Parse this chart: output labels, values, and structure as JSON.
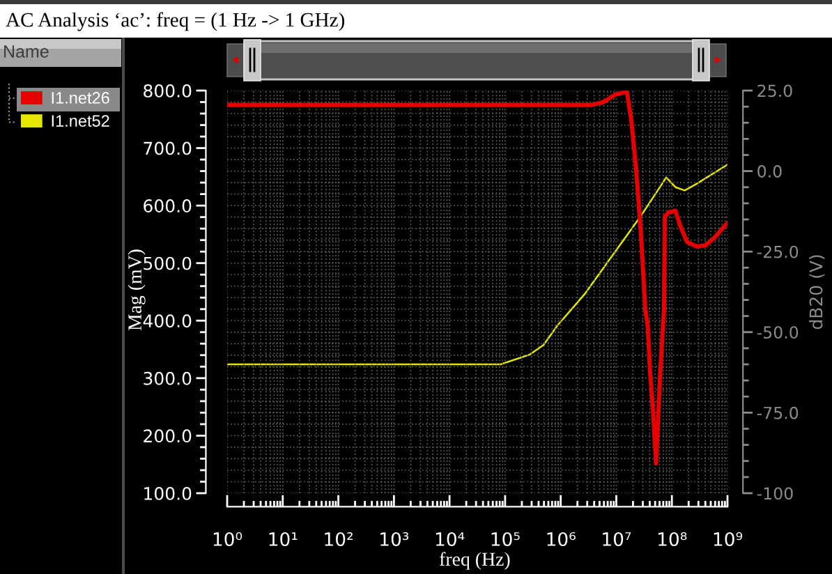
{
  "chart_data": {
    "type": "line",
    "title": "AC Analysis ‘ac’: freq = (1 Hz -> 1 GHz)",
    "xlabel": "freq (Hz)",
    "ylabel": "Mag (mV)",
    "y2label": "dB20 (V)",
    "legend_title": "Name",
    "log": "x",
    "xlim": [
      1,
      1000000000.0
    ],
    "xticks": [
      {
        "value": 1,
        "label": "10⁰"
      },
      {
        "value": 10,
        "label": "10¹"
      },
      {
        "value": 100,
        "label": "10²"
      },
      {
        "value": 1000,
        "label": "10³"
      },
      {
        "value": 10000.0,
        "label": "10⁴"
      },
      {
        "value": 100000.0,
        "label": "10⁵"
      },
      {
        "value": 1000000.0,
        "label": "10⁶"
      },
      {
        "value": 10000000.0,
        "label": "10⁷"
      },
      {
        "value": 100000000.0,
        "label": "10⁸"
      },
      {
        "value": 1000000000.0,
        "label": "10⁹"
      }
    ],
    "ylim": [
      100,
      800
    ],
    "yticks": [
      {
        "value": 100,
        "label": "100.0"
      },
      {
        "value": 200,
        "label": "200.0"
      },
      {
        "value": 300,
        "label": "300.0"
      },
      {
        "value": 400,
        "label": "400.0"
      },
      {
        "value": 500,
        "label": "500.0"
      },
      {
        "value": 600,
        "label": "600.0"
      },
      {
        "value": 700,
        "label": "700.0"
      },
      {
        "value": 800,
        "label": "800.0"
      }
    ],
    "y2lim": [
      -100,
      25
    ],
    "y2ticks": [
      {
        "value": -100,
        "label": "-100"
      },
      {
        "value": -75,
        "label": "-75.0"
      },
      {
        "value": -50,
        "label": "-50.0"
      },
      {
        "value": -25,
        "label": "-25.0"
      },
      {
        "value": 0,
        "label": "0.0"
      },
      {
        "value": 25,
        "label": "25.0"
      }
    ],
    "grid": true,
    "legend": "left",
    "series": [
      {
        "name": "I1.net26",
        "color": "#e60000",
        "x": [
          1,
          3660000.0,
          5900000.0,
          9600000.0,
          15500000.0,
          18700000.0,
          22800000.0,
          27500000.0,
          33300000.0,
          36700000.0,
          40600000.0,
          46200000.0,
          51900000.0,
          57300000.0,
          61700000.0,
          69200000.0,
          72100000.0,
          74600000.0,
          87100000.0,
          116000000.0,
          141000000.0,
          187000000.0,
          276000000.0,
          406000000.0,
          594000000.0,
          1000000000.0
        ],
        "values": [
          775,
          775,
          780,
          793,
          798,
          747,
          662,
          557,
          419,
          391,
          310,
          237,
          152,
          245,
          310,
          392,
          419,
          581,
          588,
          591,
          565,
          537,
          529,
          531,
          545,
          570
        ]
      },
      {
        "name": "I1.net52",
        "color": "#e6e600",
        "axis": "y2",
        "x": [
          1,
          83000.0,
          275000.0,
          490000.0,
          870000.0,
          2750000.0,
          8700000.0,
          27500000.0,
          79000000.0,
          116000000.0,
          170000000.0,
          275000000.0,
          1000000000.0
        ],
        "values": [
          -60,
          -60,
          -57,
          -54,
          -48,
          -38,
          -26,
          -14,
          -2,
          -5,
          -6,
          -4,
          2
        ]
      }
    ]
  }
}
